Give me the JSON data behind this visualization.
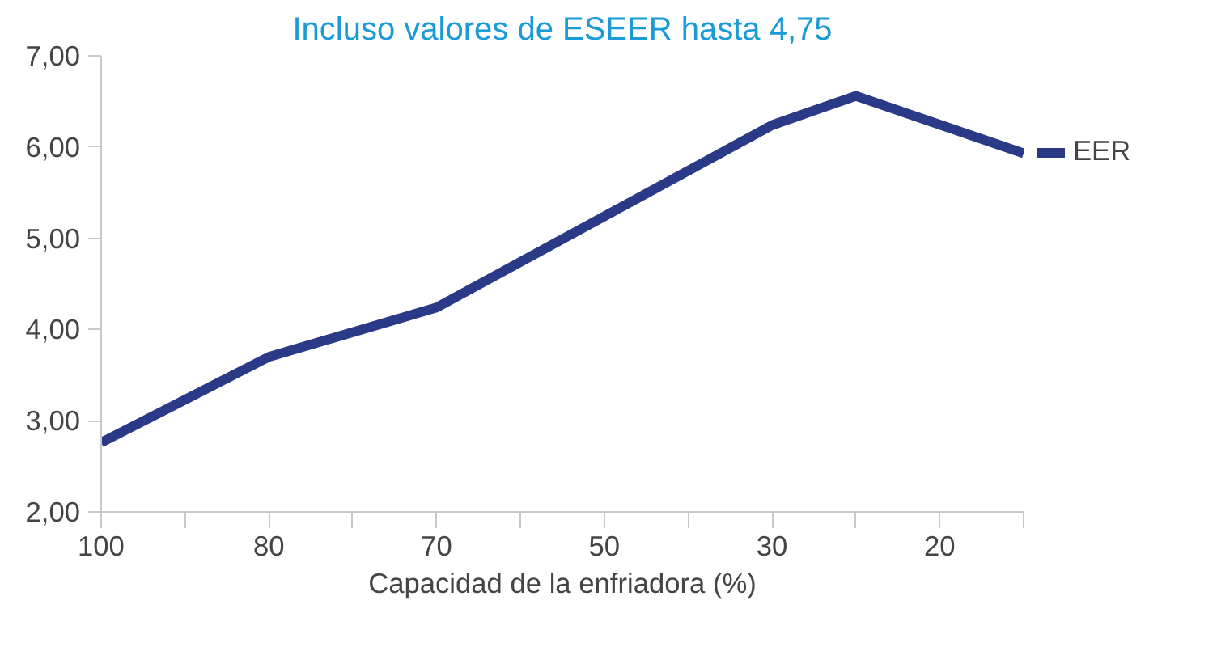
{
  "chart_data": {
    "type": "line",
    "title": "Incluso valores de ESEER hasta 4,75",
    "xlabel": "Capacidad de la enfriadora (%)",
    "categories": [
      "100",
      null,
      "80",
      null,
      "70",
      null,
      "50",
      null,
      "30",
      null,
      "20",
      null
    ],
    "ylim": [
      2,
      7
    ],
    "yticks": [
      {
        "value": 2,
        "label": "2,00"
      },
      {
        "value": 3,
        "label": "3,00"
      },
      {
        "value": 4,
        "label": "4,00"
      },
      {
        "value": 5,
        "label": "5,00"
      },
      {
        "value": 6,
        "label": "6,00"
      },
      {
        "value": 7,
        "label": "7,00"
      }
    ],
    "legend": "right",
    "line_style": "solid",
    "series": [
      {
        "name": "EER",
        "color": "#2b3a87",
        "values": [
          2.76,
          null,
          3.7,
          null,
          4.24,
          null,
          null,
          null,
          6.24,
          6.56,
          null,
          5.93
        ]
      }
    ]
  }
}
